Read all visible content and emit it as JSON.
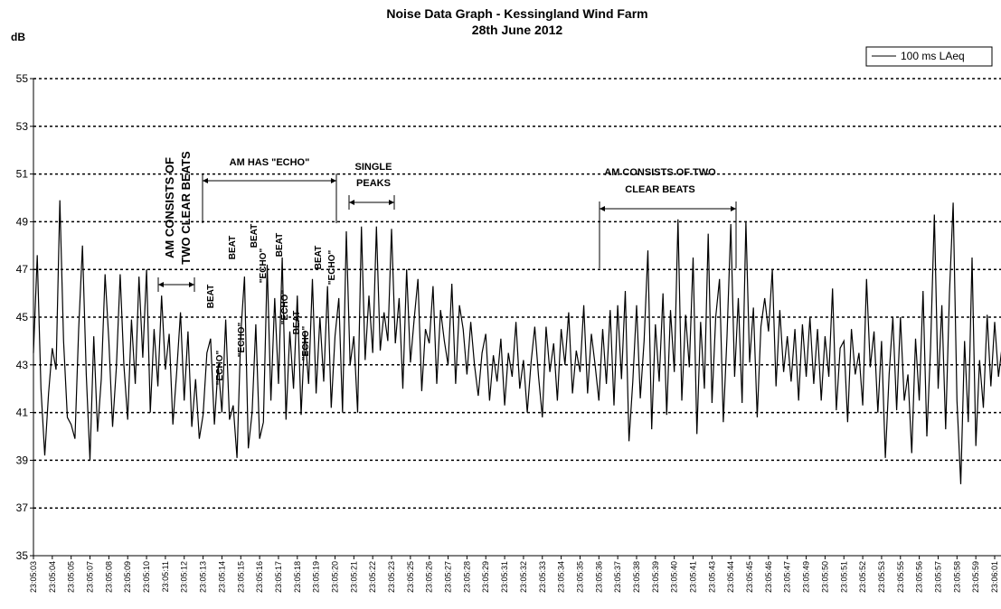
{
  "chart_data": {
    "type": "line",
    "title": "Noise Data Graph - Kessingland Wind Farm",
    "subtitle": "28th June 2012",
    "ylabel": "dB",
    "ylim": [
      35,
      55
    ],
    "yticks": [
      35,
      37,
      39,
      41,
      43,
      45,
      47,
      49,
      51,
      53,
      55
    ],
    "grid": true,
    "legend": "top-right",
    "categories": [
      "23:05:03",
      null,
      null,
      null,
      null,
      "23:05:04",
      null,
      null,
      null,
      null,
      "23:05:05",
      null,
      null,
      null,
      null,
      "23:05:07",
      null,
      null,
      null,
      null,
      "23:05:08",
      null,
      null,
      null,
      null,
      "23:05:09",
      null,
      null,
      null,
      null,
      "23:05:10",
      null,
      null,
      null,
      null,
      "23:05:11",
      null,
      null,
      null,
      null,
      "23:05:12",
      null,
      null,
      null,
      null,
      "23:05:13",
      null,
      null,
      null,
      null,
      "23:05:14",
      null,
      null,
      null,
      null,
      "23:05:15",
      null,
      null,
      null,
      null,
      "23:05:16",
      null,
      null,
      null,
      null,
      "23:05:17",
      null,
      null,
      null,
      null,
      "23:05:18",
      null,
      null,
      null,
      null,
      "23:05:19",
      null,
      null,
      null,
      null,
      "23:05:20",
      null,
      null,
      null,
      null,
      "23:05:21",
      null,
      null,
      null,
      null,
      "23:05:22",
      null,
      null,
      null,
      null,
      "23:05:23",
      null,
      null,
      null,
      null,
      "23:05:25",
      null,
      null,
      null,
      null,
      "23:05:26",
      null,
      null,
      null,
      null,
      "23:05:27",
      null,
      null,
      null,
      null,
      "23:05:28",
      null,
      null,
      null,
      null,
      "23:05:29",
      null,
      null,
      null,
      null,
      "23:05:31",
      null,
      null,
      null,
      null,
      "23:05:32",
      null,
      null,
      null,
      null,
      "23:05:33",
      null,
      null,
      null,
      null,
      "23:05:34",
      null,
      null,
      null,
      null,
      "23:05:35",
      null,
      null,
      null,
      null,
      "23:05:36",
      null,
      null,
      null,
      null,
      "23:05:37",
      null,
      null,
      null,
      null,
      "23:05:38",
      null,
      null,
      null,
      null,
      "23:05:39",
      null,
      null,
      null,
      null,
      "23:05:40",
      null,
      null,
      null,
      null,
      "23:05:41",
      null,
      null,
      null,
      null,
      "23:05:43",
      null,
      null,
      null,
      null,
      "23:05:44",
      null,
      null,
      null,
      null,
      "23:05:45",
      null,
      null,
      null,
      null,
      "23:05:46",
      null,
      null,
      null,
      null,
      "23:05:47",
      null,
      null,
      null,
      null,
      "23:05:49",
      null,
      null,
      null,
      null,
      "23:05:50",
      null,
      null,
      null,
      null,
      "23:05:51",
      null,
      null,
      null,
      null,
      "23:05:52",
      null,
      null,
      null,
      null,
      "23:05:53",
      null,
      null,
      null,
      null,
      "23:05:55",
      null,
      null,
      null,
      null,
      "23:05:56",
      null,
      null,
      null,
      null,
      "23:05:57",
      null,
      null,
      null,
      null,
      "23:05:58",
      null,
      null,
      null,
      null,
      "23:05:59",
      null,
      null,
      null,
      null,
      "23:06:01",
      null,
      null
    ],
    "series": [
      {
        "name": "100 ms LAeq",
        "color": "#000000",
        "values": [
          43.5,
          47.6,
          42,
          39.2,
          41.8,
          43.7,
          42.8,
          49.9,
          44,
          40.8,
          40.5,
          39.9,
          44.5,
          48,
          42.6,
          39,
          44.2,
          40.2,
          42.4,
          46.8,
          44,
          40.4,
          42.9,
          46.8,
          43,
          40.7,
          44.9,
          42.2,
          46.7,
          43.3,
          47,
          41,
          44.5,
          42.1,
          45.9,
          42.8,
          44.3,
          40.5,
          42.7,
          45.2,
          41.5,
          44.4,
          40.4,
          42.4,
          39.9,
          40.9,
          43.5,
          44.1,
          40.5,
          43,
          41,
          44.9,
          40.7,
          41.3,
          39.1,
          44.3,
          46.7,
          39.5,
          41,
          44.7,
          39.9,
          40.6,
          47.2,
          41.5,
          45.8,
          42.2,
          47.5,
          40.7,
          44.4,
          42,
          45.9,
          40.9,
          44.4,
          42.2,
          46.6,
          41.8,
          45,
          42.3,
          46.3,
          41.2,
          44.2,
          45.8,
          41,
          48.6,
          43,
          44.2,
          41,
          48.8,
          43.2,
          45.9,
          43.5,
          48.8,
          43.6,
          45.2,
          44,
          48.7,
          43.9,
          45.8,
          42,
          47,
          43.1,
          44.9,
          46.6,
          41.9,
          44.5,
          43.9,
          46.3,
          42.2,
          45.3,
          44,
          43,
          46.4,
          42.2,
          45.5,
          44.5,
          42.6,
          44.8,
          43,
          41.7,
          43.5,
          44.3,
          41.5,
          43.4,
          42.3,
          44.1,
          41.3,
          43.5,
          42.5,
          44.8,
          42,
          43.2,
          41,
          43.1,
          44.6,
          42.5,
          40.8,
          44.6,
          42.7,
          43.9,
          41.5,
          44.5,
          43,
          45.2,
          41.8,
          43.6,
          42.7,
          45.5,
          41.8,
          44.3,
          43,
          41.5,
          44.5,
          42.2,
          45.3,
          41.3,
          45.5,
          42.4,
          46.1,
          39.8,
          42.3,
          45.5,
          41.6,
          44,
          47.8,
          40.3,
          44.7,
          42.3,
          46,
          40.9,
          45.3,
          42.7,
          49.1,
          41.5,
          45.1,
          42.9,
          47.5,
          40.1,
          44.8,
          42,
          48.5,
          41.4,
          45,
          46.6,
          40.6,
          44.2,
          48.9,
          42.5,
          45.8,
          41.4,
          49,
          43.1,
          45.4,
          40.8,
          44.6,
          45.8,
          44.4,
          47,
          42.1,
          45.3,
          42.7,
          44.2,
          42.3,
          44.5,
          41.5,
          44.7,
          42.5,
          45,
          42.2,
          44.5,
          41.5,
          44.2,
          42.5,
          46.2,
          41.1,
          43.7,
          44,
          40.6,
          44.5,
          42.6,
          43.5,
          41.3,
          46.6,
          42.9,
          44.4,
          41,
          44,
          39.1,
          42.6,
          45,
          41.1,
          45,
          41.5,
          42.6,
          39.3,
          44.1,
          41.5,
          46.1,
          40,
          43.7,
          49.3,
          42,
          45.5,
          40.3,
          46,
          49.8,
          41.5,
          38,
          44,
          40.6,
          47.5,
          39.6,
          43.2,
          41.2,
          45.1,
          42.1,
          44.8,
          42.5,
          43.8
        ]
      }
    ],
    "annotations": [
      "AM CONSISTS OF",
      "TWO CLEAR BEATS",
      "AM HAS \"ECHO\"",
      "SINGLE",
      "PEAKS",
      "AM CONSISTS OF TWO",
      "CLEAR BEATS",
      "BEAT",
      "\"ECHO\"",
      "BEAT",
      "\"ECHO\"",
      "BEAT",
      "\"ECHO\"",
      "BEAT",
      "\"ECHO\"",
      "BEAT",
      "\"ECHO\"",
      "BEAT",
      "\"ECHO\""
    ]
  }
}
